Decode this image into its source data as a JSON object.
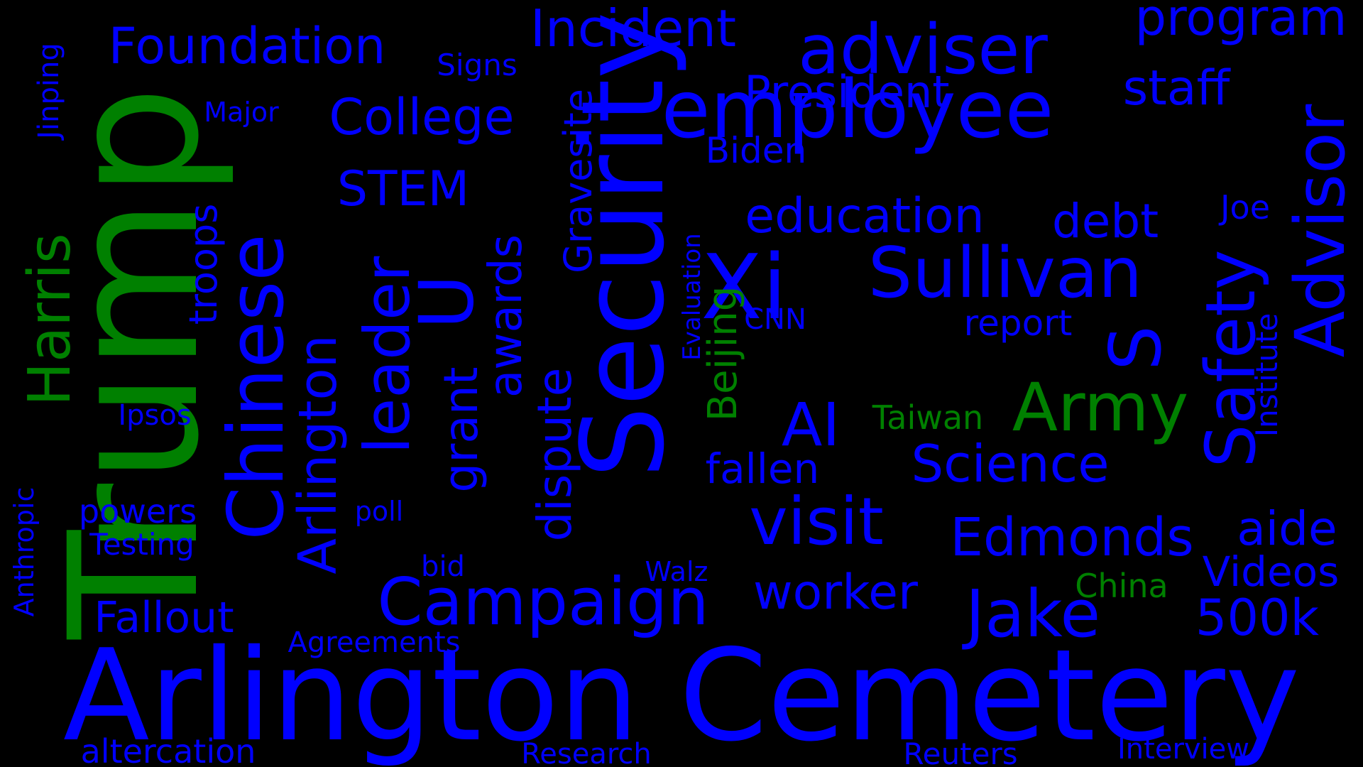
{
  "colors": {
    "background": "#000000",
    "blue": "#0000ff",
    "green": "#008000"
  },
  "words": [
    {
      "text": "Arlington Cemetery",
      "color": "blue"
    },
    {
      "text": "Trump",
      "color": "green"
    },
    {
      "text": "Security",
      "color": "blue"
    },
    {
      "text": "Chinese",
      "color": "blue"
    },
    {
      "text": "employee",
      "color": "blue"
    },
    {
      "text": "Xi",
      "color": "blue"
    },
    {
      "text": "adviser",
      "color": "blue"
    },
    {
      "text": "Campaign",
      "color": "blue"
    },
    {
      "text": "Sullivan",
      "color": "blue"
    },
    {
      "text": "Advisor",
      "color": "blue"
    },
    {
      "text": "Safety",
      "color": "blue"
    },
    {
      "text": "visit",
      "color": "blue"
    },
    {
      "text": "Jake",
      "color": "blue"
    },
    {
      "text": "leader",
      "color": "blue"
    },
    {
      "text": "Foundation",
      "color": "blue"
    },
    {
      "text": "Incident",
      "color": "blue"
    },
    {
      "text": "Harris",
      "color": "green"
    },
    {
      "text": "U",
      "color": "blue"
    },
    {
      "text": "S",
      "color": "blue"
    },
    {
      "text": "Army",
      "color": "green"
    },
    {
      "text": "College",
      "color": "blue"
    },
    {
      "text": "AI",
      "color": "blue"
    },
    {
      "text": "Arlington",
      "color": "blue"
    },
    {
      "text": "program",
      "color": "blue"
    },
    {
      "text": "education",
      "color": "blue"
    },
    {
      "text": "Edmonds",
      "color": "blue"
    },
    {
      "text": "Science",
      "color": "blue"
    },
    {
      "text": "staff",
      "color": "blue"
    },
    {
      "text": "dispute",
      "color": "blue"
    },
    {
      "text": "aide",
      "color": "blue"
    },
    {
      "text": "worker",
      "color": "blue"
    },
    {
      "text": "President",
      "color": "blue"
    },
    {
      "text": "STEM",
      "color": "blue"
    },
    {
      "text": "debt",
      "color": "blue"
    },
    {
      "text": "500k",
      "color": "blue"
    },
    {
      "text": "Videos",
      "color": "blue"
    },
    {
      "text": "grant",
      "color": "blue"
    },
    {
      "text": "awards",
      "color": "blue"
    },
    {
      "text": "Fallout",
      "color": "blue"
    },
    {
      "text": "fallen",
      "color": "blue"
    },
    {
      "text": "Gravesite",
      "color": "blue"
    },
    {
      "text": "Beijing",
      "color": "green"
    },
    {
      "text": "troops",
      "color": "blue"
    },
    {
      "text": "altercation",
      "color": "blue"
    },
    {
      "text": "Biden",
      "color": "blue"
    },
    {
      "text": "report",
      "color": "blue"
    },
    {
      "text": "powers",
      "color": "blue"
    },
    {
      "text": "Jinping",
      "color": "blue"
    },
    {
      "text": "Signs",
      "color": "blue"
    },
    {
      "text": "Taiwan",
      "color": "green"
    },
    {
      "text": "China",
      "color": "green"
    },
    {
      "text": "Institute",
      "color": "blue"
    },
    {
      "text": "Research",
      "color": "blue"
    },
    {
      "text": "Reuters",
      "color": "blue"
    },
    {
      "text": "Interview",
      "color": "blue"
    },
    {
      "text": "Agreements",
      "color": "blue"
    },
    {
      "text": "Joe",
      "color": "blue"
    },
    {
      "text": "Ipsos",
      "color": "blue"
    },
    {
      "text": "Testing",
      "color": "blue"
    },
    {
      "text": "Evaluation",
      "color": "blue"
    },
    {
      "text": "Major",
      "color": "blue"
    },
    {
      "text": "CNN",
      "color": "blue"
    },
    {
      "text": "poll",
      "color": "blue"
    },
    {
      "text": "bid",
      "color": "blue"
    },
    {
      "text": "Walz",
      "color": "blue"
    },
    {
      "text": "Anthropic",
      "color": "blue"
    }
  ]
}
